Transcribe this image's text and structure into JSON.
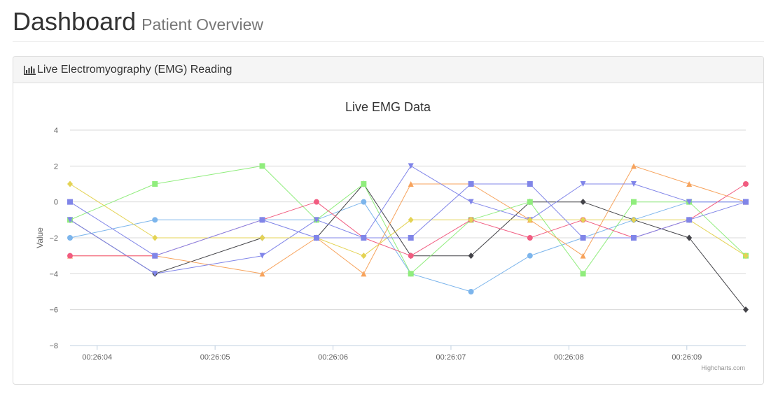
{
  "header": {
    "title": "Dashboard",
    "subtitle": "Patient Overview"
  },
  "panel": {
    "icon": "bar-chart-icon",
    "title": "Live Electromyography (EMG) Reading"
  },
  "chart_data": {
    "type": "line",
    "title": "Live EMG Data",
    "xlabel": "",
    "ylabel": "Value",
    "ylim": [
      -8,
      4
    ],
    "yticks": [
      4,
      2,
      0,
      -2,
      -4,
      -6,
      -8
    ],
    "xlim": [
      "00:26:03.77",
      "00:26:09.50"
    ],
    "xtick_labels": [
      "00:26:04",
      "00:26:05",
      "00:26:06",
      "00:26:07",
      "00:26:08",
      "00:26:09"
    ],
    "x": [
      "00:26:03.77",
      "00:26:04.49",
      "00:26:05.40",
      "00:26:05.86",
      "00:26:06.26",
      "00:26:06.66",
      "00:26:07.17",
      "00:26:07.67",
      "00:26:08.12",
      "00:26:08.55",
      "00:26:09.02",
      "00:26:09.50"
    ],
    "grid": true,
    "legend": false,
    "credits": "Highcharts.com",
    "series": [
      {
        "color": "#7cb5ec",
        "marker": "circle",
        "values": [
          -2,
          -1,
          -1,
          -1,
          0,
          -4,
          -5,
          -3,
          -2,
          -1,
          0,
          0
        ]
      },
      {
        "color": "#434348",
        "marker": "diamond",
        "values": [
          -1,
          -4,
          -2,
          -2,
          1,
          -3,
          -3,
          0,
          0,
          -1,
          -2,
          -6
        ]
      },
      {
        "color": "#90ed7d",
        "marker": "square",
        "values": [
          -1,
          1,
          2,
          -1,
          1,
          -4,
          -1,
          0,
          -4,
          0,
          0,
          -3
        ]
      },
      {
        "color": "#f7a35c",
        "marker": "triangle",
        "values": [
          -3,
          -3,
          -4,
          -2,
          -4,
          1,
          1,
          -1,
          -3,
          2,
          1,
          0
        ]
      },
      {
        "color": "#8085e9",
        "marker": "triangle-down",
        "values": [
          -1,
          -4,
          -3,
          -1,
          -2,
          2,
          0,
          -1,
          1,
          1,
          0,
          0
        ]
      },
      {
        "color": "#f15c80",
        "marker": "circle",
        "values": [
          -3,
          -3,
          -1,
          0,
          -2,
          -3,
          -1,
          -2,
          -1,
          -2,
          -1,
          1
        ]
      },
      {
        "color": "#e4d354",
        "marker": "diamond",
        "values": [
          1,
          -2,
          -2,
          -2,
          -3,
          -1,
          -1,
          -1,
          -1,
          -1,
          -1,
          -3
        ]
      },
      {
        "color": "#8085e8",
        "marker": "square",
        "values": [
          0,
          -3,
          -1,
          -2,
          -2,
          -2,
          1,
          1,
          -2,
          -2,
          -1,
          0
        ]
      }
    ]
  }
}
